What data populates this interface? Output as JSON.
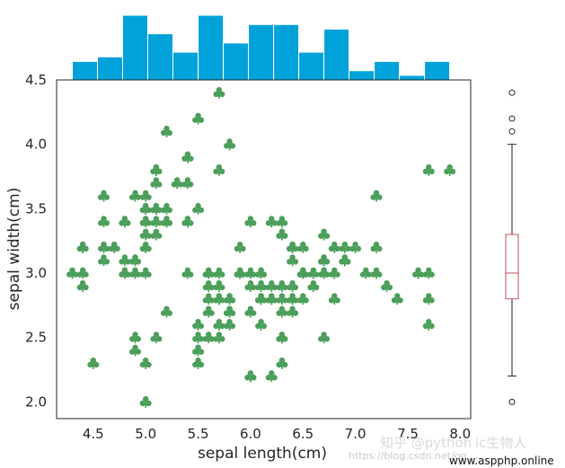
{
  "chart_data": {
    "type": "scatter",
    "xlabel": "sepal length(cm)",
    "ylabel": "sepal width(cm)",
    "xlim": [
      4.15,
      8.1
    ],
    "ylim": [
      1.87,
      4.5
    ],
    "xticks": [
      "4.5",
      "5.0",
      "5.5",
      "6.0",
      "6.5",
      "7.0",
      "7.5",
      "8.0"
    ],
    "yticks": [
      "2.0",
      "2.5",
      "3.0",
      "3.5",
      "4.0",
      "4.5"
    ],
    "marker": "club",
    "marker_color": "#4c9f5a",
    "points": [
      [
        5.1,
        3.5
      ],
      [
        4.9,
        3.0
      ],
      [
        4.7,
        3.2
      ],
      [
        4.6,
        3.1
      ],
      [
        5.0,
        3.6
      ],
      [
        5.4,
        3.9
      ],
      [
        4.6,
        3.4
      ],
      [
        5.0,
        3.4
      ],
      [
        4.4,
        2.9
      ],
      [
        4.9,
        3.1
      ],
      [
        5.4,
        3.7
      ],
      [
        4.8,
        3.4
      ],
      [
        4.8,
        3.0
      ],
      [
        4.3,
        3.0
      ],
      [
        5.8,
        4.0
      ],
      [
        5.7,
        4.4
      ],
      [
        5.4,
        3.9
      ],
      [
        5.1,
        3.5
      ],
      [
        5.7,
        3.8
      ],
      [
        5.1,
        3.8
      ],
      [
        5.4,
        3.4
      ],
      [
        5.1,
        3.7
      ],
      [
        4.6,
        3.6
      ],
      [
        5.1,
        3.3
      ],
      [
        4.8,
        3.4
      ],
      [
        5.0,
        3.0
      ],
      [
        5.0,
        3.4
      ],
      [
        5.2,
        3.5
      ],
      [
        5.2,
        3.4
      ],
      [
        4.7,
        3.2
      ],
      [
        4.8,
        3.1
      ],
      [
        5.4,
        3.4
      ],
      [
        5.2,
        4.1
      ],
      [
        5.5,
        4.2
      ],
      [
        4.9,
        3.1
      ],
      [
        5.0,
        3.2
      ],
      [
        5.5,
        3.5
      ],
      [
        4.9,
        3.6
      ],
      [
        4.4,
        3.0
      ],
      [
        5.1,
        3.4
      ],
      [
        5.0,
        3.5
      ],
      [
        4.5,
        2.3
      ],
      [
        4.4,
        3.2
      ],
      [
        5.0,
        3.5
      ],
      [
        5.1,
        3.8
      ],
      [
        4.8,
        3.0
      ],
      [
        5.1,
        3.8
      ],
      [
        4.6,
        3.2
      ],
      [
        5.3,
        3.7
      ],
      [
        5.0,
        3.3
      ],
      [
        7.0,
        3.2
      ],
      [
        6.4,
        3.2
      ],
      [
        6.9,
        3.1
      ],
      [
        5.5,
        2.3
      ],
      [
        6.5,
        2.8
      ],
      [
        5.7,
        2.8
      ],
      [
        6.3,
        3.3
      ],
      [
        4.9,
        2.4
      ],
      [
        6.6,
        2.9
      ],
      [
        5.2,
        2.7
      ],
      [
        5.0,
        2.0
      ],
      [
        5.9,
        3.0
      ],
      [
        6.0,
        2.2
      ],
      [
        6.1,
        2.9
      ],
      [
        5.6,
        2.9
      ],
      [
        6.7,
        3.1
      ],
      [
        5.6,
        3.0
      ],
      [
        5.8,
        2.7
      ],
      [
        6.2,
        2.2
      ],
      [
        5.6,
        2.5
      ],
      [
        5.9,
        3.2
      ],
      [
        6.1,
        2.8
      ],
      [
        6.3,
        2.5
      ],
      [
        6.1,
        2.8
      ],
      [
        6.4,
        2.9
      ],
      [
        6.6,
        3.0
      ],
      [
        6.8,
        2.8
      ],
      [
        6.7,
        3.0
      ],
      [
        6.0,
        2.9
      ],
      [
        5.7,
        2.6
      ],
      [
        5.5,
        2.4
      ],
      [
        5.5,
        2.4
      ],
      [
        5.8,
        2.7
      ],
      [
        6.0,
        2.7
      ],
      [
        5.4,
        3.0
      ],
      [
        6.0,
        3.4
      ],
      [
        6.7,
        3.1
      ],
      [
        6.3,
        2.3
      ],
      [
        5.6,
        3.0
      ],
      [
        5.5,
        2.5
      ],
      [
        5.5,
        2.6
      ],
      [
        6.1,
        3.0
      ],
      [
        5.8,
        2.6
      ],
      [
        5.0,
        2.3
      ],
      [
        5.6,
        2.7
      ],
      [
        5.7,
        3.0
      ],
      [
        5.7,
        2.9
      ],
      [
        6.2,
        2.9
      ],
      [
        5.1,
        2.5
      ],
      [
        5.7,
        2.8
      ],
      [
        6.3,
        3.3
      ],
      [
        5.8,
        2.7
      ],
      [
        7.1,
        3.0
      ],
      [
        6.3,
        2.9
      ],
      [
        6.5,
        3.0
      ],
      [
        7.6,
        3.0
      ],
      [
        4.9,
        2.5
      ],
      [
        7.3,
        2.9
      ],
      [
        6.7,
        2.5
      ],
      [
        7.2,
        3.6
      ],
      [
        6.5,
        3.2
      ],
      [
        6.4,
        2.7
      ],
      [
        6.8,
        3.0
      ],
      [
        5.7,
        2.5
      ],
      [
        5.8,
        2.8
      ],
      [
        6.4,
        3.2
      ],
      [
        6.5,
        3.0
      ],
      [
        7.7,
        3.8
      ],
      [
        7.7,
        2.6
      ],
      [
        6.0,
        2.2
      ],
      [
        6.9,
        3.2
      ],
      [
        5.6,
        2.8
      ],
      [
        7.7,
        2.8
      ],
      [
        6.3,
        2.7
      ],
      [
        6.7,
        3.3
      ],
      [
        7.2,
        3.2
      ],
      [
        6.2,
        2.8
      ],
      [
        6.1,
        3.0
      ],
      [
        6.4,
        2.8
      ],
      [
        7.2,
        3.0
      ],
      [
        7.4,
        2.8
      ],
      [
        7.9,
        3.8
      ],
      [
        6.4,
        2.8
      ],
      [
        6.3,
        2.8
      ],
      [
        6.1,
        2.6
      ],
      [
        7.7,
        3.0
      ],
      [
        6.3,
        3.4
      ],
      [
        6.4,
        3.1
      ],
      [
        6.0,
        3.0
      ],
      [
        6.9,
        3.1
      ],
      [
        6.7,
        3.1
      ],
      [
        6.9,
        3.1
      ],
      [
        5.8,
        2.7
      ],
      [
        6.8,
        3.2
      ],
      [
        6.7,
        3.3
      ],
      [
        6.7,
        3.0
      ],
      [
        6.3,
        2.5
      ],
      [
        6.5,
        3.0
      ],
      [
        6.2,
        3.4
      ],
      [
        5.9,
        3.0
      ],
      [
        4.4,
        3.2
      ],
      [
        5.2,
        3.4
      ],
      [
        5.0,
        3.2
      ],
      [
        6.2,
        2.8
      ],
      [
        6.4,
        3.2
      ],
      [
        5.1,
        3.5
      ],
      [
        5.9,
        3.0
      ],
      [
        6.5,
        3.0
      ],
      [
        5.8,
        2.8
      ],
      [
        6.1,
        2.8
      ]
    ],
    "histogram": {
      "counts": [
        4,
        5,
        14,
        10,
        6,
        14,
        8,
        12,
        12,
        6,
        11,
        2,
        4,
        1,
        4
      ],
      "range": [
        4.3,
        7.9
      ],
      "color": "#00a2d9"
    },
    "boxplot": {
      "q1": 2.8,
      "median": 3.0,
      "q3": 3.3,
      "whisker_low": 2.2,
      "whisker_high": 4.0,
      "outliers": [
        4.4,
        4.1,
        4.2,
        2.0
      ],
      "box_color": "#c44e52"
    }
  },
  "watermark": {
    "site": "知乎 @python",
    "site_cont": "ic生物人",
    "url": "https://blog.csdn.net/qq_...",
    "corner": "www.aspphp.online"
  }
}
